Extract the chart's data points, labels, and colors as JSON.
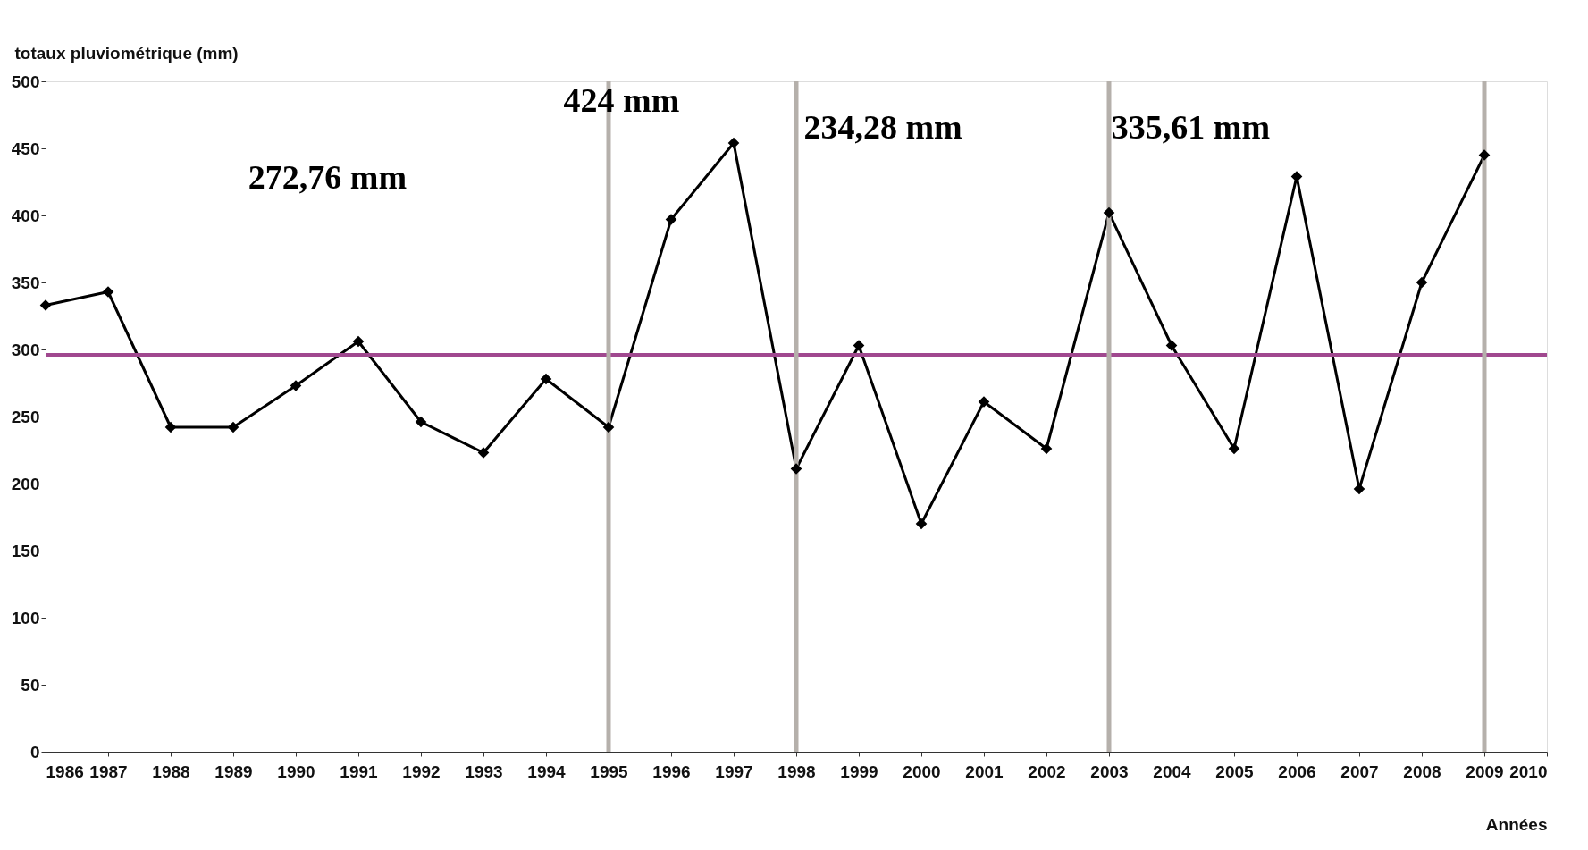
{
  "chart_data": {
    "type": "line",
    "xlabel": "Années",
    "ylabel": "totaux pluviométrique (mm)",
    "x": [
      1986,
      1987,
      1988,
      1989,
      1990,
      1991,
      1992,
      1993,
      1994,
      1995,
      1996,
      1997,
      1998,
      1999,
      2000,
      2001,
      2002,
      2003,
      2004,
      2005,
      2006,
      2007,
      2008,
      2009
    ],
    "series": [
      {
        "color": "#000000",
        "values": [
          333,
          343,
          242,
          242,
          273,
          306,
          246,
          223,
          278,
          242,
          397,
          454,
          211,
          303,
          170,
          261,
          226,
          402,
          303,
          226,
          429,
          196,
          350,
          445
        ]
      }
    ],
    "xlim": [
      1986,
      2010
    ],
    "xticks": [
      1986,
      1987,
      1988,
      1989,
      1990,
      1991,
      1992,
      1993,
      1994,
      1995,
      1996,
      1997,
      1998,
      1999,
      2000,
      2001,
      2002,
      2003,
      2004,
      2005,
      2006,
      2007,
      2008,
      2009,
      2010
    ],
    "ylim": [
      0,
      500
    ],
    "yticks": [
      0,
      50,
      100,
      150,
      200,
      250,
      300,
      350,
      400,
      450,
      500
    ],
    "ref_lines": [
      {
        "axis": "y",
        "value": 296,
        "color": "#a0488f"
      },
      {
        "axis": "x",
        "value": 1995,
        "color": "#b5b0ab"
      },
      {
        "axis": "x",
        "value": 1998,
        "color": "#b5b0ab"
      },
      {
        "axis": "x",
        "value": 2003,
        "color": "#b5b0ab"
      },
      {
        "axis": "x",
        "value": 2009,
        "color": "#b5b0ab"
      }
    ],
    "annotations": [
      "272,76 mm",
      "424 mm",
      "234,28 mm",
      "335,61 mm"
    ],
    "marker": "diamond",
    "line_style": "solid",
    "grid": false
  }
}
